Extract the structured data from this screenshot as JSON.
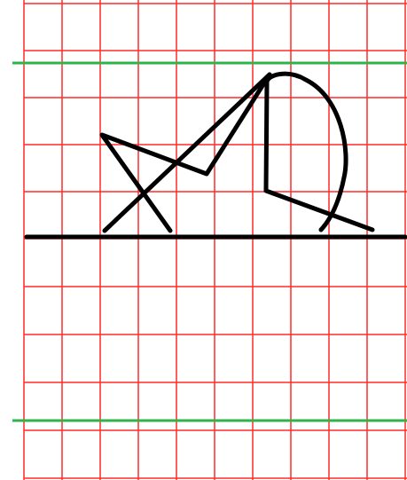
{
  "colors": {
    "background": "#ffffff",
    "grid": "#ff2a2a",
    "guide": "#2fb34a",
    "ink": "#000000"
  }
}
